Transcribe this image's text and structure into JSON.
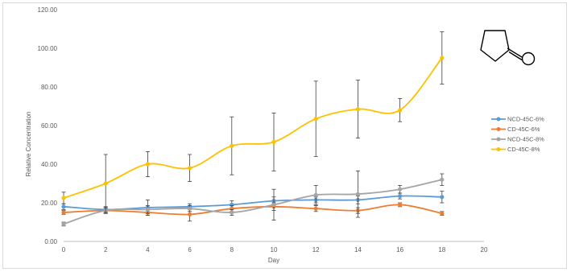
{
  "chart_data": {
    "type": "line",
    "title": "",
    "xlabel": "Day",
    "ylabel": "Relative Concentration",
    "xlim": [
      0,
      20
    ],
    "ylim": [
      0,
      120
    ],
    "x_ticks": [
      "0",
      "2",
      "4",
      "6",
      "8",
      "10",
      "12",
      "14",
      "16",
      "18",
      "20"
    ],
    "y_ticks": [
      "0.00",
      "20.00",
      "40.00",
      "60.00",
      "80.00",
      "100.00",
      "120.00"
    ],
    "grid": false,
    "legend_position": "right",
    "x": [
      0,
      2,
      4,
      6,
      8,
      10,
      12,
      14,
      16,
      18
    ],
    "series": [
      {
        "name": "NCD-45C-6%",
        "color": "#5b9bd5",
        "values": [
          18,
          16.5,
          17.5,
          18,
          19,
          21,
          21.5,
          21.5,
          23.5,
          23
        ],
        "errors": [
          1.5,
          1.5,
          4,
          1.5,
          2,
          2,
          1.5,
          2,
          1.5,
          3
        ]
      },
      {
        "name": "CD-45C-6%",
        "color": "#ed7d31",
        "values": [
          15,
          16,
          15,
          14,
          17,
          18,
          17,
          16,
          19,
          14.5
        ],
        "errors": [
          1,
          1.5,
          1.5,
          3.5,
          1.5,
          2,
          1.5,
          1.5,
          1,
          1
        ]
      },
      {
        "name": "NCD-45C-8%",
        "color": "#a5a5a5",
        "values": [
          9,
          16,
          16.5,
          17,
          15,
          19,
          24,
          24.5,
          27,
          32
        ],
        "errors": [
          1,
          1.5,
          2,
          1.5,
          1.5,
          8,
          5,
          12,
          2,
          3
        ]
      },
      {
        "name": "CD-45C-8%",
        "color": "#ffc000",
        "values": [
          22.5,
          30,
          40,
          38,
          49.5,
          51.5,
          63.5,
          68.5,
          68,
          95
        ],
        "errors": [
          3,
          15,
          6.5,
          7,
          15,
          15,
          19.5,
          15,
          6,
          13.5
        ]
      }
    ],
    "inset_image": "gamma-butyrolactone-structure"
  }
}
